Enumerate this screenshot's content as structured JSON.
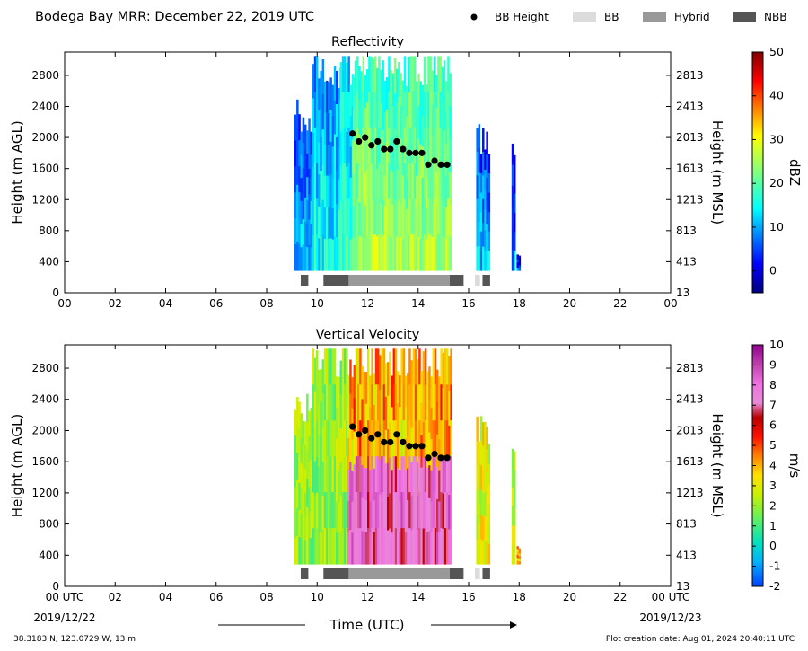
{
  "header": {
    "title": "Bodega Bay MRR:  December 22, 2019 UTC",
    "legend": [
      {
        "label": "BB Height",
        "kind": "dot",
        "color": "#000000"
      },
      {
        "label": "BB",
        "kind": "swatch",
        "color": "#dcdcdc"
      },
      {
        "label": "Hybrid",
        "kind": "swatch",
        "color": "#999999"
      },
      {
        "label": "NBB",
        "kind": "swatch",
        "color": "#555555"
      }
    ]
  },
  "footer": {
    "date_start": "2019/12/22",
    "date_end": "2019/12/23",
    "xlabel": "Time (UTC)",
    "location": "38.3183 N, 123.0729 W, 13 m",
    "creation": "Plot creation date: Aug 01, 2024 20:40:11 UTC"
  },
  "chart_data": [
    {
      "type": "heatmap",
      "title": "Reflectivity",
      "xlabel": "",
      "ylabel": "Height (m AGL)",
      "ylabel_right": "Height (m MSL)",
      "xlim": [
        0,
        24
      ],
      "ylim": [
        0,
        3100
      ],
      "x_ticks": [
        "00",
        "02",
        "04",
        "06",
        "08",
        "10",
        "12",
        "14",
        "16",
        "18",
        "20",
        "22",
        "00"
      ],
      "y_ticks": [
        0,
        400,
        800,
        1200,
        1600,
        2000,
        2400,
        2800
      ],
      "y_ticks_right": [
        13,
        413,
        813,
        1213,
        1613,
        2013,
        2413,
        2813
      ],
      "colorbar": {
        "label": "dBZ",
        "min": -5,
        "max": 50,
        "ticks": [
          0,
          10,
          20,
          30,
          40,
          50
        ],
        "colormap": "jet"
      },
      "bb_height": {
        "x": [
          11.4,
          11.65,
          11.9,
          12.15,
          12.4,
          12.65,
          12.9,
          13.15,
          13.4,
          13.65,
          13.9,
          14.15,
          14.4,
          14.65,
          14.9,
          15.15
        ],
        "y": [
          2050,
          1950,
          2000,
          1900,
          1950,
          1850,
          1850,
          1950,
          1850,
          1800,
          1800,
          1800,
          1650,
          1700,
          1650,
          1650
        ]
      },
      "bb_type_bar": [
        {
          "start": 9.35,
          "end": 9.65,
          "type": "NBB"
        },
        {
          "start": 10.25,
          "end": 11.25,
          "type": "NBB"
        },
        {
          "start": 11.25,
          "end": 15.25,
          "type": "Hybrid"
        },
        {
          "start": 15.25,
          "end": 15.8,
          "type": "NBB"
        },
        {
          "start": 16.25,
          "end": 16.45,
          "type": "BB"
        },
        {
          "start": 16.55,
          "end": 16.85,
          "type": "NBB"
        }
      ],
      "data_segments": [
        {
          "start": 9.1,
          "end": 9.8,
          "top": 2300,
          "value": 8
        },
        {
          "start": 9.8,
          "end": 10.9,
          "top": 2950,
          "value": 12
        },
        {
          "start": 10.9,
          "end": 11.4,
          "top": 3000,
          "value": 15
        },
        {
          "start": 11.4,
          "end": 15.3,
          "top": 3000,
          "value": 22
        },
        {
          "start": 16.3,
          "end": 16.8,
          "top": 2000,
          "value": 8
        },
        {
          "start": 17.7,
          "end": 17.8,
          "top": 1900,
          "value": 5
        },
        {
          "start": 17.9,
          "end": 18.05,
          "top": 500,
          "value": 2
        }
      ]
    },
    {
      "type": "heatmap",
      "title": "Vertical Velocity",
      "xlabel": "Time (UTC)",
      "ylabel": "Height (m AGL)",
      "ylabel_right": "Height (m MSL)",
      "xlim": [
        0,
        24
      ],
      "ylim": [
        0,
        3100
      ],
      "x_ticks": [
        "00 UTC",
        "02",
        "04",
        "06",
        "08",
        "10",
        "12",
        "14",
        "16",
        "18",
        "20",
        "22",
        "00 UTC"
      ],
      "y_ticks": [
        0,
        400,
        800,
        1200,
        1600,
        2000,
        2400,
        2800
      ],
      "y_ticks_right": [
        13,
        413,
        813,
        1213,
        1613,
        2013,
        2413,
        2813
      ],
      "colorbar": {
        "label": "m/s",
        "min": -2,
        "max": 10,
        "ticks": [
          -2,
          -1,
          0,
          1,
          2,
          3,
          4,
          5,
          6,
          7,
          8,
          9,
          10
        ],
        "colormap": "velocity"
      },
      "bb_height": {
        "x": [
          11.4,
          11.65,
          11.9,
          12.15,
          12.4,
          12.65,
          12.9,
          13.15,
          13.4,
          13.65,
          13.9,
          14.15,
          14.4,
          14.65,
          14.9,
          15.15
        ],
        "y": [
          2050,
          1950,
          2000,
          1900,
          1950,
          1850,
          1850,
          1950,
          1850,
          1800,
          1800,
          1800,
          1650,
          1700,
          1650,
          1650
        ]
      },
      "bb_type_bar": [
        {
          "start": 9.35,
          "end": 9.65,
          "type": "NBB"
        },
        {
          "start": 10.25,
          "end": 11.25,
          "type": "NBB"
        },
        {
          "start": 11.25,
          "end": 15.25,
          "type": "Hybrid"
        },
        {
          "start": 15.25,
          "end": 15.8,
          "type": "NBB"
        },
        {
          "start": 16.25,
          "end": 16.45,
          "type": "BB"
        },
        {
          "start": 16.55,
          "end": 16.85,
          "type": "NBB"
        }
      ],
      "data_segments": [
        {
          "start": 9.1,
          "end": 9.8,
          "top": 2300,
          "value": 2
        },
        {
          "start": 9.8,
          "end": 10.9,
          "top": 2950,
          "value": 2
        },
        {
          "start": 10.9,
          "end": 11.2,
          "top": 3000,
          "value": 2
        },
        {
          "start": 11.2,
          "end": 15.3,
          "top": 3000,
          "value": 6.5
        },
        {
          "start": 16.3,
          "end": 16.8,
          "top": 2000,
          "value": 3
        },
        {
          "start": 17.7,
          "end": 17.8,
          "top": 1900,
          "value": 2.5
        },
        {
          "start": 17.9,
          "end": 18.05,
          "top": 500,
          "value": 4
        }
      ]
    }
  ]
}
